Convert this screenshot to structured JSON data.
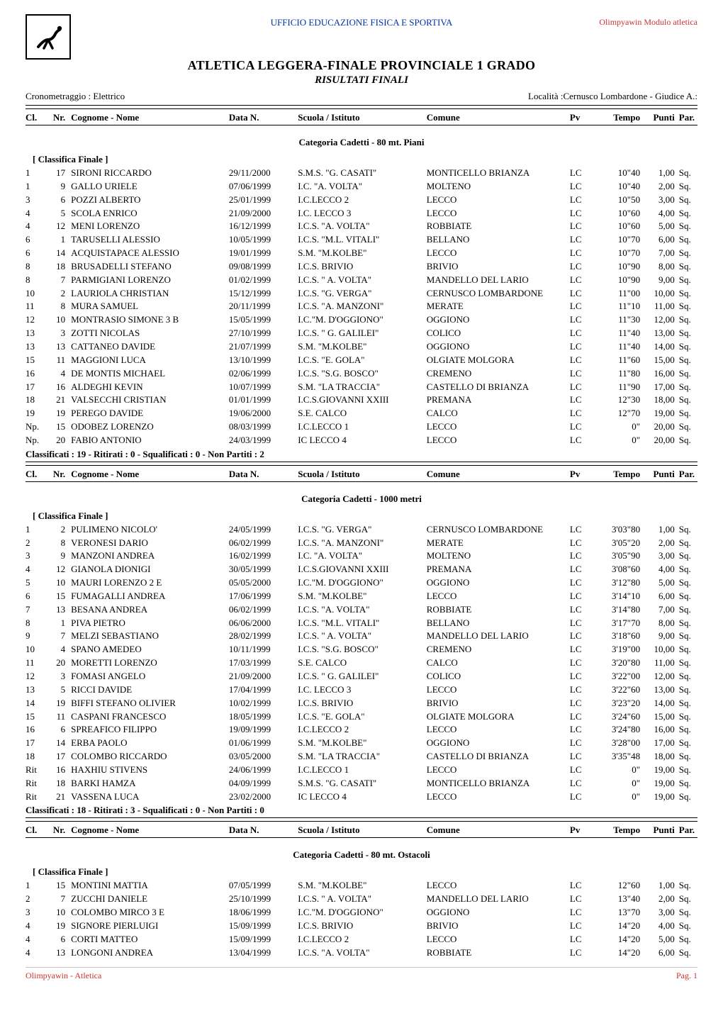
{
  "header": {
    "top_center": "UFFICIO EDUCAZIONE FISICA E SPORTIVA",
    "top_right": "Olimpyawin Modulo atletica",
    "title_main": "ATLETICA LEGGERA-FINALE PROVINCIALE 1 GRADO",
    "title_sub": "RISULTATI  FINALI",
    "crono_left": "Cronometraggio : Elettrico",
    "crono_right": "Località :Cernusco Lombardone - Giudice A.:"
  },
  "cols": {
    "cl": "Cl.",
    "nr": "Nr.",
    "name": "Cognome - Nome",
    "date": "Data N.",
    "school": "Scuola / Istituto",
    "comune": "Comune",
    "pv": "Pv",
    "tempo": "Tempo",
    "punti": "Punti",
    "par": "Par."
  },
  "misc": {
    "classifica": "[ Classifica Finale ]"
  },
  "sections": [
    {
      "category": "Categoria Cadetti - 80 mt. Piani",
      "rows": [
        {
          "cl": "1",
          "nr": "17",
          "name": "SIRONI RICCARDO",
          "date": "29/11/2000",
          "school": "S.M.S. \"G. CASATI\"",
          "comune": "MONTICELLO BRIANZA",
          "pv": "LC",
          "tempo": "10\"40",
          "punti": "1,00",
          "par": "Sq."
        },
        {
          "cl": "1",
          "nr": "9",
          "name": "GALLO URIELE",
          "date": "07/06/1999",
          "school": "I.C. \"A. VOLTA\"",
          "comune": "MOLTENO",
          "pv": "LC",
          "tempo": "10\"40",
          "punti": "2,00",
          "par": "Sq."
        },
        {
          "cl": "3",
          "nr": "6",
          "name": "POZZI ALBERTO",
          "date": "25/01/1999",
          "school": "I.C.LECCO 2",
          "comune": "LECCO",
          "pv": "LC",
          "tempo": "10\"50",
          "punti": "3,00",
          "par": "Sq."
        },
        {
          "cl": "4",
          "nr": "5",
          "name": "SCOLA ENRICO",
          "date": "21/09/2000",
          "school": "I.C. LECCO 3",
          "comune": "LECCO",
          "pv": "LC",
          "tempo": "10\"60",
          "punti": "4,00",
          "par": "Sq."
        },
        {
          "cl": "4",
          "nr": "12",
          "name": "MENI LORENZO",
          "date": "16/12/1999",
          "school": "I.C.S. \"A. VOLTA\"",
          "comune": "ROBBIATE",
          "pv": "LC",
          "tempo": "10\"60",
          "punti": "5,00",
          "par": "Sq."
        },
        {
          "cl": "6",
          "nr": "1",
          "name": "TARUSELLI ALESSIO",
          "date": "10/05/1999",
          "school": "I.C.S. \"M.L. VITALI\"",
          "comune": "BELLANO",
          "pv": "LC",
          "tempo": "10\"70",
          "punti": "6,00",
          "par": "Sq."
        },
        {
          "cl": "6",
          "nr": "14",
          "name": "ACQUISTAPACE ALESSIO",
          "date": "19/01/1999",
          "school": "S.M. \"M.KOLBE\"",
          "comune": "LECCO",
          "pv": "LC",
          "tempo": "10\"70",
          "punti": "7,00",
          "par": "Sq."
        },
        {
          "cl": "8",
          "nr": "18",
          "name": "BRUSADELLI STEFANO",
          "date": "09/08/1999",
          "school": "I.C.S. BRIVIO",
          "comune": "BRIVIO",
          "pv": "LC",
          "tempo": "10\"90",
          "punti": "8,00",
          "par": "Sq."
        },
        {
          "cl": "8",
          "nr": "7",
          "name": "PARMIGIANI LORENZO",
          "date": "01/02/1999",
          "school": "I.C.S. \" A. VOLTA\"",
          "comune": "MANDELLO DEL LARIO",
          "pv": "LC",
          "tempo": "10\"90",
          "punti": "9,00",
          "par": "Sq."
        },
        {
          "cl": "10",
          "nr": "2",
          "name": "LAURIOLA CHRISTIAN",
          "date": "15/12/1999",
          "school": "I.C.S. \"G. VERGA\"",
          "comune": "CERNUSCO LOMBARDONE",
          "pv": "LC",
          "tempo": "11\"00",
          "punti": "10,00",
          "par": "Sq."
        },
        {
          "cl": "11",
          "nr": "8",
          "name": "MURA SAMUEL",
          "date": "20/11/1999",
          "school": "I.C.S. \"A. MANZONI\"",
          "comune": "MERATE",
          "pv": "LC",
          "tempo": "11\"10",
          "punti": "11,00",
          "par": "Sq."
        },
        {
          "cl": "12",
          "nr": "10",
          "name": "MONTRASIO SIMONE 3 B",
          "date": "15/05/1999",
          "school": "I.C.\"M. D'OGGIONO\"",
          "comune": "OGGIONO",
          "pv": "LC",
          "tempo": "11\"30",
          "punti": "12,00",
          "par": "Sq."
        },
        {
          "cl": "13",
          "nr": "3",
          "name": "ZOTTI NICOLAS",
          "date": "27/10/1999",
          "school": "I.C.S. \" G. GALILEI\"",
          "comune": "COLICO",
          "pv": "LC",
          "tempo": "11\"40",
          "punti": "13,00",
          "par": "Sq."
        },
        {
          "cl": "13",
          "nr": "13",
          "name": "CATTANEO DAVIDE",
          "date": "21/07/1999",
          "school": "S.M. \"M.KOLBE\"",
          "comune": "OGGIONO",
          "pv": "LC",
          "tempo": "11\"40",
          "punti": "14,00",
          "par": "Sq."
        },
        {
          "cl": "15",
          "nr": "11",
          "name": "MAGGIONI LUCA",
          "date": "13/10/1999",
          "school": "I.C.S. \"E. GOLA\"",
          "comune": "OLGIATE MOLGORA",
          "pv": "LC",
          "tempo": "11\"60",
          "punti": "15,00",
          "par": "Sq."
        },
        {
          "cl": "16",
          "nr": "4",
          "name": "DE MONTIS MICHAEL",
          "date": "02/06/1999",
          "school": "I.C.S. \"S.G. BOSCO\"",
          "comune": "CREMENO",
          "pv": "LC",
          "tempo": "11\"80",
          "punti": "16,00",
          "par": "Sq."
        },
        {
          "cl": "17",
          "nr": "16",
          "name": "ALDEGHI KEVIN",
          "date": "10/07/1999",
          "school": "S.M. \"LA TRACCIA\"",
          "comune": "CASTELLO DI BRIANZA",
          "pv": "LC",
          "tempo": "11\"90",
          "punti": "17,00",
          "par": "Sq."
        },
        {
          "cl": "18",
          "nr": "21",
          "name": "VALSECCHI CRISTIAN",
          "date": "01/01/1999",
          "school": "I.C.S.GIOVANNI XXIII",
          "comune": "PREMANA",
          "pv": "LC",
          "tempo": "12\"30",
          "punti": "18,00",
          "par": "Sq."
        },
        {
          "cl": "19",
          "nr": "19",
          "name": "PEREGO DAVIDE",
          "date": "19/06/2000",
          "school": "S.E. CALCO",
          "comune": "CALCO",
          "pv": "LC",
          "tempo": "12\"70",
          "punti": "19,00",
          "par": "Sq."
        },
        {
          "cl": "Np.",
          "nr": "15",
          "name": "ODOBEZ LORENZO",
          "date": "08/03/1999",
          "school": "I.C.LECCO 1",
          "comune": "LECCO",
          "pv": "LC",
          "tempo": "0\"",
          "punti": "20,00",
          "par": "Sq."
        },
        {
          "cl": "Np.",
          "nr": "20",
          "name": "FABIO ANTONIO",
          "date": "24/03/1999",
          "school": "IC LECCO 4",
          "comune": "LECCO",
          "pv": "LC",
          "tempo": "0\"",
          "punti": "20,00",
          "par": "Sq."
        }
      ],
      "summary": "Classificati : 19 - Ritirati : 0 - Squalificati : 0 - Non Partiti : 2"
    },
    {
      "category": "Categoria Cadetti - 1000 metri",
      "rows": [
        {
          "cl": "1",
          "nr": "2",
          "name": "PULIMENO NICOLO'",
          "date": "24/05/1999",
          "school": "I.C.S. \"G. VERGA\"",
          "comune": "CERNUSCO LOMBARDONE",
          "pv": "LC",
          "tempo": "3'03\"80",
          "punti": "1,00",
          "par": "Sq."
        },
        {
          "cl": "2",
          "nr": "8",
          "name": "VERONESI DARIO",
          "date": "06/02/1999",
          "school": "I.C.S. \"A. MANZONI\"",
          "comune": "MERATE",
          "pv": "LC",
          "tempo": "3'05\"20",
          "punti": "2,00",
          "par": "Sq."
        },
        {
          "cl": "3",
          "nr": "9",
          "name": "MANZONI ANDREA",
          "date": "16/02/1999",
          "school": "I.C. \"A. VOLTA\"",
          "comune": "MOLTENO",
          "pv": "LC",
          "tempo": "3'05\"90",
          "punti": "3,00",
          "par": "Sq."
        },
        {
          "cl": "4",
          "nr": "12",
          "name": "GIANOLA DIONIGI",
          "date": "30/05/1999",
          "school": "I.C.S.GIOVANNI XXIII",
          "comune": "PREMANA",
          "pv": "LC",
          "tempo": "3'08\"60",
          "punti": "4,00",
          "par": "Sq."
        },
        {
          "cl": "5",
          "nr": "10",
          "name": "MAURI LORENZO 2 E",
          "date": "05/05/2000",
          "school": "I.C.\"M. D'OGGIONO\"",
          "comune": "OGGIONO",
          "pv": "LC",
          "tempo": "3'12\"80",
          "punti": "5,00",
          "par": "Sq."
        },
        {
          "cl": "6",
          "nr": "15",
          "name": "FUMAGALLI ANDREA",
          "date": "17/06/1999",
          "school": "S.M. \"M.KOLBE\"",
          "comune": "LECCO",
          "pv": "LC",
          "tempo": "3'14\"10",
          "punti": "6,00",
          "par": "Sq."
        },
        {
          "cl": "7",
          "nr": "13",
          "name": "BESANA ANDREA",
          "date": "06/02/1999",
          "school": "I.C.S. \"A. VOLTA\"",
          "comune": "ROBBIATE",
          "pv": "LC",
          "tempo": "3'14\"80",
          "punti": "7,00",
          "par": "Sq."
        },
        {
          "cl": "8",
          "nr": "1",
          "name": "PIVA PIETRO",
          "date": "06/06/2000",
          "school": "I.C.S. \"M.L. VITALI\"",
          "comune": "BELLANO",
          "pv": "LC",
          "tempo": "3'17\"70",
          "punti": "8,00",
          "par": "Sq."
        },
        {
          "cl": "9",
          "nr": "7",
          "name": "MELZI SEBASTIANO",
          "date": "28/02/1999",
          "school": "I.C.S. \" A. VOLTA\"",
          "comune": "MANDELLO DEL LARIO",
          "pv": "LC",
          "tempo": "3'18\"60",
          "punti": "9,00",
          "par": "Sq."
        },
        {
          "cl": "10",
          "nr": "4",
          "name": "SPANO AMEDEO",
          "date": "10/11/1999",
          "school": "I.C.S. \"S.G. BOSCO\"",
          "comune": "CREMENO",
          "pv": "LC",
          "tempo": "3'19\"00",
          "punti": "10,00",
          "par": "Sq."
        },
        {
          "cl": "11",
          "nr": "20",
          "name": "MORETTI LORENZO",
          "date": "17/03/1999",
          "school": "S.E. CALCO",
          "comune": "CALCO",
          "pv": "LC",
          "tempo": "3'20\"80",
          "punti": "11,00",
          "par": "Sq."
        },
        {
          "cl": "12",
          "nr": "3",
          "name": "FOMASI ANGELO",
          "date": "21/09/2000",
          "school": "I.C.S. \" G. GALILEI\"",
          "comune": "COLICO",
          "pv": "LC",
          "tempo": "3'22\"00",
          "punti": "12,00",
          "par": "Sq."
        },
        {
          "cl": "13",
          "nr": "5",
          "name": "RICCI DAVIDE",
          "date": "17/04/1999",
          "school": "I.C. LECCO 3",
          "comune": "LECCO",
          "pv": "LC",
          "tempo": "3'22\"60",
          "punti": "13,00",
          "par": "Sq."
        },
        {
          "cl": "14",
          "nr": "19",
          "name": "BIFFI STEFANO OLIVIER",
          "date": "10/02/1999",
          "school": "I.C.S. BRIVIO",
          "comune": "BRIVIO",
          "pv": "LC",
          "tempo": "3'23\"20",
          "punti": "14,00",
          "par": "Sq."
        },
        {
          "cl": "15",
          "nr": "11",
          "name": "CASPANI FRANCESCO",
          "date": "18/05/1999",
          "school": "I.C.S. \"E. GOLA\"",
          "comune": "OLGIATE MOLGORA",
          "pv": "LC",
          "tempo": "3'24\"60",
          "punti": "15,00",
          "par": "Sq."
        },
        {
          "cl": "16",
          "nr": "6",
          "name": "SPREAFICO FILIPPO",
          "date": "19/09/1999",
          "school": "I.C.LECCO 2",
          "comune": "LECCO",
          "pv": "LC",
          "tempo": "3'24\"80",
          "punti": "16,00",
          "par": "Sq."
        },
        {
          "cl": "17",
          "nr": "14",
          "name": "ERBA PAOLO",
          "date": "01/06/1999",
          "school": "S.M. \"M.KOLBE\"",
          "comune": "OGGIONO",
          "pv": "LC",
          "tempo": "3'28\"00",
          "punti": "17,00",
          "par": "Sq."
        },
        {
          "cl": "18",
          "nr": "17",
          "name": "COLOMBO RICCARDO",
          "date": "03/05/2000",
          "school": "S.M. \"LA TRACCIA\"",
          "comune": "CASTELLO DI BRIANZA",
          "pv": "LC",
          "tempo": "3'35\"48",
          "punti": "18,00",
          "par": "Sq."
        },
        {
          "cl": "Rit",
          "nr": "16",
          "name": "HAXHIU STIVENS",
          "date": "24/06/1999",
          "school": "I.C.LECCO 1",
          "comune": "LECCO",
          "pv": "LC",
          "tempo": "0\"",
          "punti": "19,00",
          "par": "Sq."
        },
        {
          "cl": "Rit",
          "nr": "18",
          "name": "BARKI HAMZA",
          "date": "04/09/1999",
          "school": "S.M.S. \"G. CASATI\"",
          "comune": "MONTICELLO BRIANZA",
          "pv": "LC",
          "tempo": "0\"",
          "punti": "19,00",
          "par": "Sq."
        },
        {
          "cl": "Rit",
          "nr": "21",
          "name": "VASSENA LUCA",
          "date": "23/02/2000",
          "school": "IC LECCO 4",
          "comune": "LECCO",
          "pv": "LC",
          "tempo": "0\"",
          "punti": "19,00",
          "par": "Sq."
        }
      ],
      "summary": "Classificati : 18 - Ritirati : 3 - Squalificati : 0 - Non Partiti : 0"
    },
    {
      "category": "Categoria Cadetti - 80 mt. Ostacoli",
      "rows": [
        {
          "cl": "1",
          "nr": "15",
          "name": "MONTINI MATTIA",
          "date": "07/05/1999",
          "school": "S.M. \"M.KOLBE\"",
          "comune": "LECCO",
          "pv": "LC",
          "tempo": "12\"60",
          "punti": "1,00",
          "par": "Sq."
        },
        {
          "cl": "2",
          "nr": "7",
          "name": "ZUCCHI DANIELE",
          "date": "25/10/1999",
          "school": "I.C.S. \" A. VOLTA\"",
          "comune": "MANDELLO DEL LARIO",
          "pv": "LC",
          "tempo": "13\"40",
          "punti": "2,00",
          "par": "Sq."
        },
        {
          "cl": "3",
          "nr": "10",
          "name": "COLOMBO MIRCO 3 E",
          "date": "18/06/1999",
          "school": "I.C.\"M. D'OGGIONO\"",
          "comune": "OGGIONO",
          "pv": "LC",
          "tempo": "13\"70",
          "punti": "3,00",
          "par": "Sq."
        },
        {
          "cl": "4",
          "nr": "19",
          "name": "SIGNORE PIERLUIGI",
          "date": "15/09/1999",
          "school": "I.C.S. BRIVIO",
          "comune": "BRIVIO",
          "pv": "LC",
          "tempo": "14\"20",
          "punti": "4,00",
          "par": "Sq."
        },
        {
          "cl": "4",
          "nr": "6",
          "name": "CORTI MATTEO",
          "date": "15/09/1999",
          "school": "I.C.LECCO 2",
          "comune": "LECCO",
          "pv": "LC",
          "tempo": "14\"20",
          "punti": "5,00",
          "par": "Sq."
        },
        {
          "cl": "4",
          "nr": "13",
          "name": "LONGONI ANDREA",
          "date": "13/04/1999",
          "school": "I.C.S. \"A. VOLTA\"",
          "comune": "ROBBIATE",
          "pv": "LC",
          "tempo": "14\"20",
          "punti": "6,00",
          "par": "Sq."
        }
      ],
      "summary": null
    }
  ],
  "footer": {
    "left": "Olimpyawin - Atletica",
    "right": "Pag. 1"
  }
}
